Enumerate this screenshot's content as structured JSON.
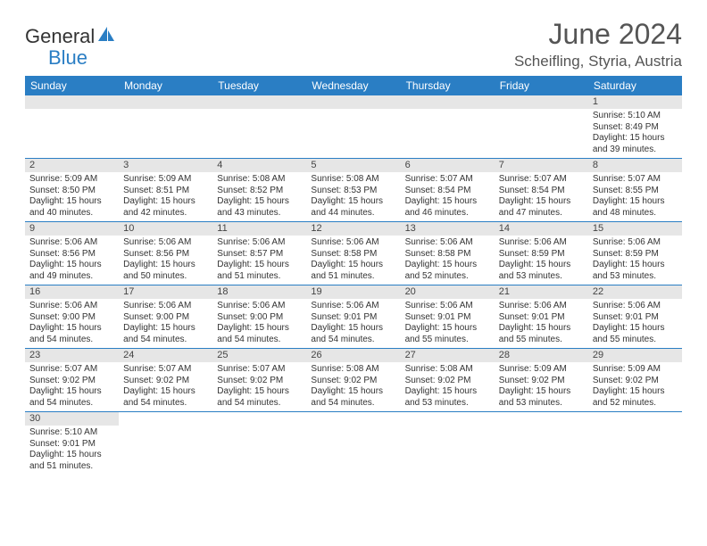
{
  "logo": {
    "text1": "General",
    "text2": "Blue",
    "color1": "#333333",
    "color2": "#2a7ec4"
  },
  "title": "June 2024",
  "location": "Scheifling, Styria, Austria",
  "weekdays": [
    "Sunday",
    "Monday",
    "Tuesday",
    "Wednesday",
    "Thursday",
    "Friday",
    "Saturday"
  ],
  "header_bg": "#2a7ec4",
  "daynum_bg": "#e6e6e6",
  "weeks": [
    [
      null,
      null,
      null,
      null,
      null,
      null,
      {
        "n": "1",
        "sr": "5:10 AM",
        "ss": "8:49 PM",
        "dl": "15 hours and 39 minutes."
      }
    ],
    [
      {
        "n": "2",
        "sr": "5:09 AM",
        "ss": "8:50 PM",
        "dl": "15 hours and 40 minutes."
      },
      {
        "n": "3",
        "sr": "5:09 AM",
        "ss": "8:51 PM",
        "dl": "15 hours and 42 minutes."
      },
      {
        "n": "4",
        "sr": "5:08 AM",
        "ss": "8:52 PM",
        "dl": "15 hours and 43 minutes."
      },
      {
        "n": "5",
        "sr": "5:08 AM",
        "ss": "8:53 PM",
        "dl": "15 hours and 44 minutes."
      },
      {
        "n": "6",
        "sr": "5:07 AM",
        "ss": "8:54 PM",
        "dl": "15 hours and 46 minutes."
      },
      {
        "n": "7",
        "sr": "5:07 AM",
        "ss": "8:54 PM",
        "dl": "15 hours and 47 minutes."
      },
      {
        "n": "8",
        "sr": "5:07 AM",
        "ss": "8:55 PM",
        "dl": "15 hours and 48 minutes."
      }
    ],
    [
      {
        "n": "9",
        "sr": "5:06 AM",
        "ss": "8:56 PM",
        "dl": "15 hours and 49 minutes."
      },
      {
        "n": "10",
        "sr": "5:06 AM",
        "ss": "8:56 PM",
        "dl": "15 hours and 50 minutes."
      },
      {
        "n": "11",
        "sr": "5:06 AM",
        "ss": "8:57 PM",
        "dl": "15 hours and 51 minutes."
      },
      {
        "n": "12",
        "sr": "5:06 AM",
        "ss": "8:58 PM",
        "dl": "15 hours and 51 minutes."
      },
      {
        "n": "13",
        "sr": "5:06 AM",
        "ss": "8:58 PM",
        "dl": "15 hours and 52 minutes."
      },
      {
        "n": "14",
        "sr": "5:06 AM",
        "ss": "8:59 PM",
        "dl": "15 hours and 53 minutes."
      },
      {
        "n": "15",
        "sr": "5:06 AM",
        "ss": "8:59 PM",
        "dl": "15 hours and 53 minutes."
      }
    ],
    [
      {
        "n": "16",
        "sr": "5:06 AM",
        "ss": "9:00 PM",
        "dl": "15 hours and 54 minutes."
      },
      {
        "n": "17",
        "sr": "5:06 AM",
        "ss": "9:00 PM",
        "dl": "15 hours and 54 minutes."
      },
      {
        "n": "18",
        "sr": "5:06 AM",
        "ss": "9:00 PM",
        "dl": "15 hours and 54 minutes."
      },
      {
        "n": "19",
        "sr": "5:06 AM",
        "ss": "9:01 PM",
        "dl": "15 hours and 54 minutes."
      },
      {
        "n": "20",
        "sr": "5:06 AM",
        "ss": "9:01 PM",
        "dl": "15 hours and 55 minutes."
      },
      {
        "n": "21",
        "sr": "5:06 AM",
        "ss": "9:01 PM",
        "dl": "15 hours and 55 minutes."
      },
      {
        "n": "22",
        "sr": "5:06 AM",
        "ss": "9:01 PM",
        "dl": "15 hours and 55 minutes."
      }
    ],
    [
      {
        "n": "23",
        "sr": "5:07 AM",
        "ss": "9:02 PM",
        "dl": "15 hours and 54 minutes."
      },
      {
        "n": "24",
        "sr": "5:07 AM",
        "ss": "9:02 PM",
        "dl": "15 hours and 54 minutes."
      },
      {
        "n": "25",
        "sr": "5:07 AM",
        "ss": "9:02 PM",
        "dl": "15 hours and 54 minutes."
      },
      {
        "n": "26",
        "sr": "5:08 AM",
        "ss": "9:02 PM",
        "dl": "15 hours and 54 minutes."
      },
      {
        "n": "27",
        "sr": "5:08 AM",
        "ss": "9:02 PM",
        "dl": "15 hours and 53 minutes."
      },
      {
        "n": "28",
        "sr": "5:09 AM",
        "ss": "9:02 PM",
        "dl": "15 hours and 53 minutes."
      },
      {
        "n": "29",
        "sr": "5:09 AM",
        "ss": "9:02 PM",
        "dl": "15 hours and 52 minutes."
      }
    ],
    [
      {
        "n": "30",
        "sr": "5:10 AM",
        "ss": "9:01 PM",
        "dl": "15 hours and 51 minutes."
      },
      null,
      null,
      null,
      null,
      null,
      null
    ]
  ],
  "labels": {
    "sunrise": "Sunrise:",
    "sunset": "Sunset:",
    "daylight": "Daylight:"
  }
}
